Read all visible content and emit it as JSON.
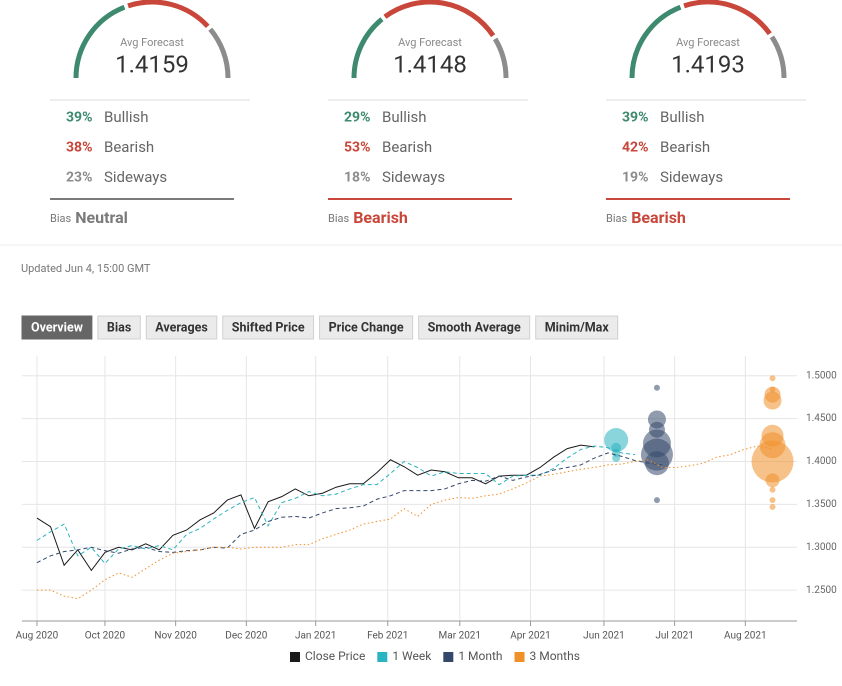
{
  "panels": [
    {
      "heading": "Avg Forecast",
      "value": 1.4159,
      "rows": [
        {
          "share": {
            "value": 39,
            "label": "39%"
          },
          "name": "Bullish",
          "color": "#3d8a6e"
        },
        {
          "share": {
            "value": 38,
            "label": "38%"
          },
          "name": "Bearish",
          "color": "#c8473a"
        },
        {
          "share": {
            "value": 23,
            "label": "23%"
          },
          "name": "Sideways",
          "color": "#8c8c8c"
        }
      ],
      "bias_label": "Bias",
      "bias": "Neutral",
      "bias_color": "#7a7a7a"
    },
    {
      "heading": "Avg Forecast",
      "value": 1.4148,
      "rows": [
        {
          "share": {
            "value": 29,
            "label": "29%"
          },
          "name": "Bullish",
          "color": "#3d8a6e"
        },
        {
          "share": {
            "value": 53,
            "label": "53%"
          },
          "name": "Bearish",
          "color": "#c8473a"
        },
        {
          "share": {
            "value": 18,
            "label": "18%"
          },
          "name": "Sideways",
          "color": "#8c8c8c"
        }
      ],
      "bias_label": "Bias",
      "bias": "Bearish",
      "bias_color": "#c8473a"
    },
    {
      "heading": "Avg Forecast",
      "value": 1.4193,
      "rows": [
        {
          "share": {
            "value": 39,
            "label": "39%"
          },
          "name": "Bullish",
          "color": "#3d8a6e"
        },
        {
          "share": {
            "value": 42,
            "label": "42%"
          },
          "name": "Bearish",
          "color": "#c8473a"
        },
        {
          "share": {
            "value": 19,
            "label": "19%"
          },
          "name": "Sideways",
          "color": "#8c8c8c"
        }
      ],
      "bias_label": "Bias",
      "bias": "Bearish",
      "bias_color": "#c8473a"
    }
  ],
  "updated": "Updated Jun 4, 15:00 GMT",
  "tabs": [
    "Overview",
    "Bias",
    "Averages",
    "Shifted Price",
    "Price Change",
    "Smooth Average",
    "Minim/Max"
  ],
  "active_tab": 0,
  "chart_data": {
    "type": "line",
    "x": [
      0,
      1,
      2,
      3,
      4,
      5,
      6,
      7,
      8,
      9,
      10,
      11,
      12,
      13,
      14,
      15,
      16,
      17,
      18,
      19,
      20,
      21,
      22,
      23,
      24,
      25,
      26,
      27,
      28,
      29,
      30,
      31,
      32,
      33,
      34,
      35,
      36,
      37,
      38,
      39,
      40,
      41,
      42,
      43,
      44,
      45,
      46,
      47,
      48,
      49,
      50,
      51,
      52,
      53,
      54
    ],
    "xlim": [
      -1.1,
      55.9
    ],
    "xticks": [
      {
        "value": 0,
        "label": "Aug 2020"
      },
      {
        "value": 5,
        "label": "Oct 2020"
      },
      {
        "value": 10.2,
        "label": "Nov 2020"
      },
      {
        "value": 15.4,
        "label": "Dec 2020"
      },
      {
        "value": 20.5,
        "label": "Jan 2021"
      },
      {
        "value": 25.8,
        "label": "Feb 2021"
      },
      {
        "value": 31.1,
        "label": "Mar 2021"
      },
      {
        "value": 36.3,
        "label": "Apr 2021"
      },
      {
        "value": 41.7,
        "label": "Jun 2021"
      },
      {
        "value": 46.9,
        "label": "Jul 2021"
      },
      {
        "value": 52.1,
        "label": "Aug 2021"
      }
    ],
    "ylim": [
      1.214,
      1.523
    ],
    "yticks": [
      {
        "value": 1.25,
        "label": "1.2500"
      },
      {
        "value": 1.3,
        "label": "1.3000"
      },
      {
        "value": 1.35,
        "label": "1.3500"
      },
      {
        "value": 1.4,
        "label": "1.4000"
      },
      {
        "value": 1.45,
        "label": "1.4500"
      },
      {
        "value": 1.5,
        "label": "1.5000"
      }
    ],
    "grid": true,
    "series": [
      {
        "name": "Close Price",
        "color": "#1a1a1a",
        "style": "solid",
        "values": [
          1.334,
          1.324,
          1.279,
          1.297,
          1.273,
          1.294,
          1.3,
          1.297,
          1.304,
          1.297,
          1.314,
          1.32,
          1.332,
          1.34,
          1.355,
          1.361,
          1.322,
          1.353,
          1.359,
          1.368,
          1.36,
          1.363,
          1.37,
          1.374,
          1.374,
          1.387,
          1.402,
          1.394,
          1.384,
          1.39,
          1.388,
          1.381,
          1.381,
          1.374,
          1.383,
          1.384,
          1.384,
          1.393,
          1.405,
          1.415,
          1.419,
          1.417,
          null,
          null,
          null,
          null,
          null,
          null,
          null,
          null,
          null,
          null,
          null,
          null,
          null
        ]
      },
      {
        "name": "1 Week",
        "color": "#2ab3c0",
        "style": "dashed",
        "values": [
          1.308,
          1.318,
          1.327,
          1.29,
          1.3,
          1.281,
          1.298,
          1.302,
          1.298,
          1.302,
          1.297,
          1.315,
          1.322,
          1.333,
          1.343,
          1.352,
          1.358,
          1.325,
          1.352,
          1.357,
          1.365,
          1.36,
          1.362,
          1.368,
          1.373,
          1.373,
          1.386,
          1.4,
          1.393,
          1.383,
          1.388,
          1.386,
          1.386,
          1.386,
          1.373,
          1.383,
          1.384,
          1.384,
          1.392,
          1.404,
          1.414,
          1.418,
          1.416,
          1.41,
          1.408,
          null,
          null,
          null,
          null,
          null,
          null,
          null,
          null,
          null,
          null
        ],
        "forecast_x": 42.6,
        "forecast_values": [
          1.425,
          1.416,
          1.41,
          1.404
        ],
        "forecast_sizes": [
          12,
          5,
          4,
          4
        ]
      },
      {
        "name": "1 Month",
        "color": "#34486b",
        "style": "dashed",
        "values": [
          1.282,
          1.29,
          1.295,
          1.297,
          1.3,
          1.296,
          1.293,
          1.298,
          1.3,
          1.295,
          1.294,
          1.296,
          1.297,
          1.3,
          1.299,
          1.315,
          1.32,
          1.33,
          1.335,
          1.336,
          1.334,
          1.34,
          1.345,
          1.346,
          1.348,
          1.356,
          1.36,
          1.366,
          1.366,
          1.366,
          1.368,
          1.374,
          1.378,
          1.377,
          1.383,
          1.378,
          1.382,
          1.385,
          1.39,
          1.393,
          1.396,
          1.404,
          1.41,
          1.406,
          1.401,
          1.398,
          1.396,
          null,
          null,
          null,
          null,
          null,
          null,
          null,
          null
        ],
        "forecast_x": 45.6,
        "forecast_values": [
          1.486,
          1.449,
          1.437,
          1.421,
          1.408,
          1.398,
          1.355
        ],
        "forecast_sizes": [
          3,
          9,
          8,
          14,
          16,
          12,
          3
        ]
      },
      {
        "name": "3 Months",
        "color": "#f0902a",
        "style": "dotted",
        "values": [
          1.25,
          1.25,
          1.243,
          1.24,
          1.25,
          1.262,
          1.27,
          1.265,
          1.275,
          1.285,
          1.293,
          1.295,
          1.297,
          1.3,
          1.3,
          1.298,
          1.3,
          1.3,
          1.3,
          1.303,
          1.303,
          1.31,
          1.315,
          1.32,
          1.327,
          1.33,
          1.333,
          1.345,
          1.336,
          1.35,
          1.355,
          1.358,
          1.357,
          1.36,
          1.362,
          1.368,
          1.375,
          1.383,
          1.385,
          1.388,
          1.391,
          1.393,
          1.396,
          1.397,
          1.4,
          1.402,
          1.393,
          1.393,
          1.395,
          1.398,
          1.405,
          1.408,
          1.414,
          1.418,
          1.415
        ],
        "forecast_x": 54.1,
        "forecast_values": [
          1.497,
          1.484,
          1.478,
          1.471,
          1.43,
          1.419,
          1.4,
          1.378,
          1.367,
          1.355,
          1.347
        ],
        "forecast_sizes": [
          3,
          3,
          8,
          9,
          11,
          13,
          21,
          7,
          3,
          3,
          3
        ]
      }
    ]
  }
}
